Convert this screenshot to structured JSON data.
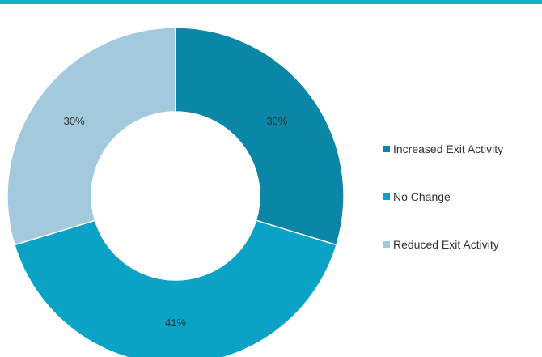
{
  "colors": {
    "top_rule": "#12b4c8",
    "series": [
      "#0c86a6",
      "#0aa3c5",
      "#a3c9dd"
    ],
    "slice_border": "#ffffff"
  },
  "chart_data": {
    "type": "pie",
    "style": "donut",
    "categories": [
      "Increased Exit Activity",
      "No Change",
      "Reduced Exit Activity"
    ],
    "values": [
      30,
      41,
      30
    ],
    "data_labels": [
      "30%",
      "41%",
      "30%"
    ],
    "title": "",
    "legend_position": "right"
  }
}
